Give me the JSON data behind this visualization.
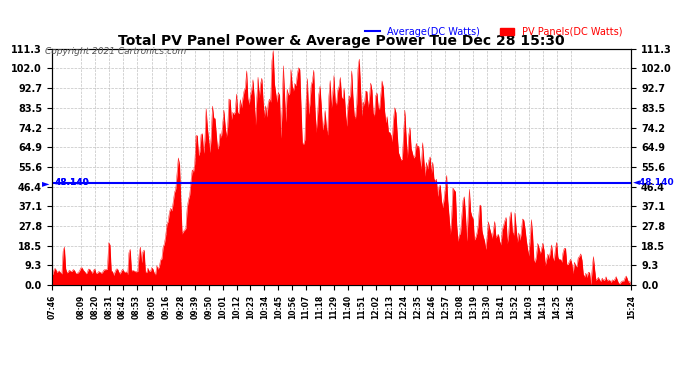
{
  "title": "Total PV Panel Power & Average Power Tue Dec 28 15:30",
  "copyright": "Copyright 2021 Cartronics.com",
  "legend_avg": "Average(DC Watts)",
  "legend_pv": "PV Panels(DC Watts)",
  "avg_value": 48.14,
  "avg_label": "48.140",
  "ymin": 0.0,
  "ymax": 111.3,
  "yticks": [
    0.0,
    9.3,
    18.5,
    27.8,
    37.1,
    46.4,
    55.6,
    64.9,
    74.2,
    83.5,
    92.7,
    102.0,
    111.3
  ],
  "color_fill": "#FF0000",
  "color_avg_line": "#0000FF",
  "color_title": "#000000",
  "color_copyright": "#555555",
  "color_avg_legend": "#0000FF",
  "color_pv_legend": "#FF0000",
  "xtick_labels": [
    "07:46",
    "08:09",
    "08:20",
    "08:31",
    "08:42",
    "08:53",
    "09:05",
    "09:16",
    "09:28",
    "09:39",
    "09:50",
    "10:01",
    "10:12",
    "10:23",
    "10:34",
    "10:45",
    "10:56",
    "11:07",
    "11:18",
    "11:29",
    "11:40",
    "11:51",
    "12:02",
    "12:13",
    "12:24",
    "12:35",
    "12:46",
    "12:57",
    "13:08",
    "13:19",
    "13:30",
    "13:41",
    "13:52",
    "14:03",
    "14:14",
    "14:25",
    "14:36",
    "15:24"
  ],
  "background_color": "#FFFFFF",
  "grid_color": "#BBBBBB"
}
